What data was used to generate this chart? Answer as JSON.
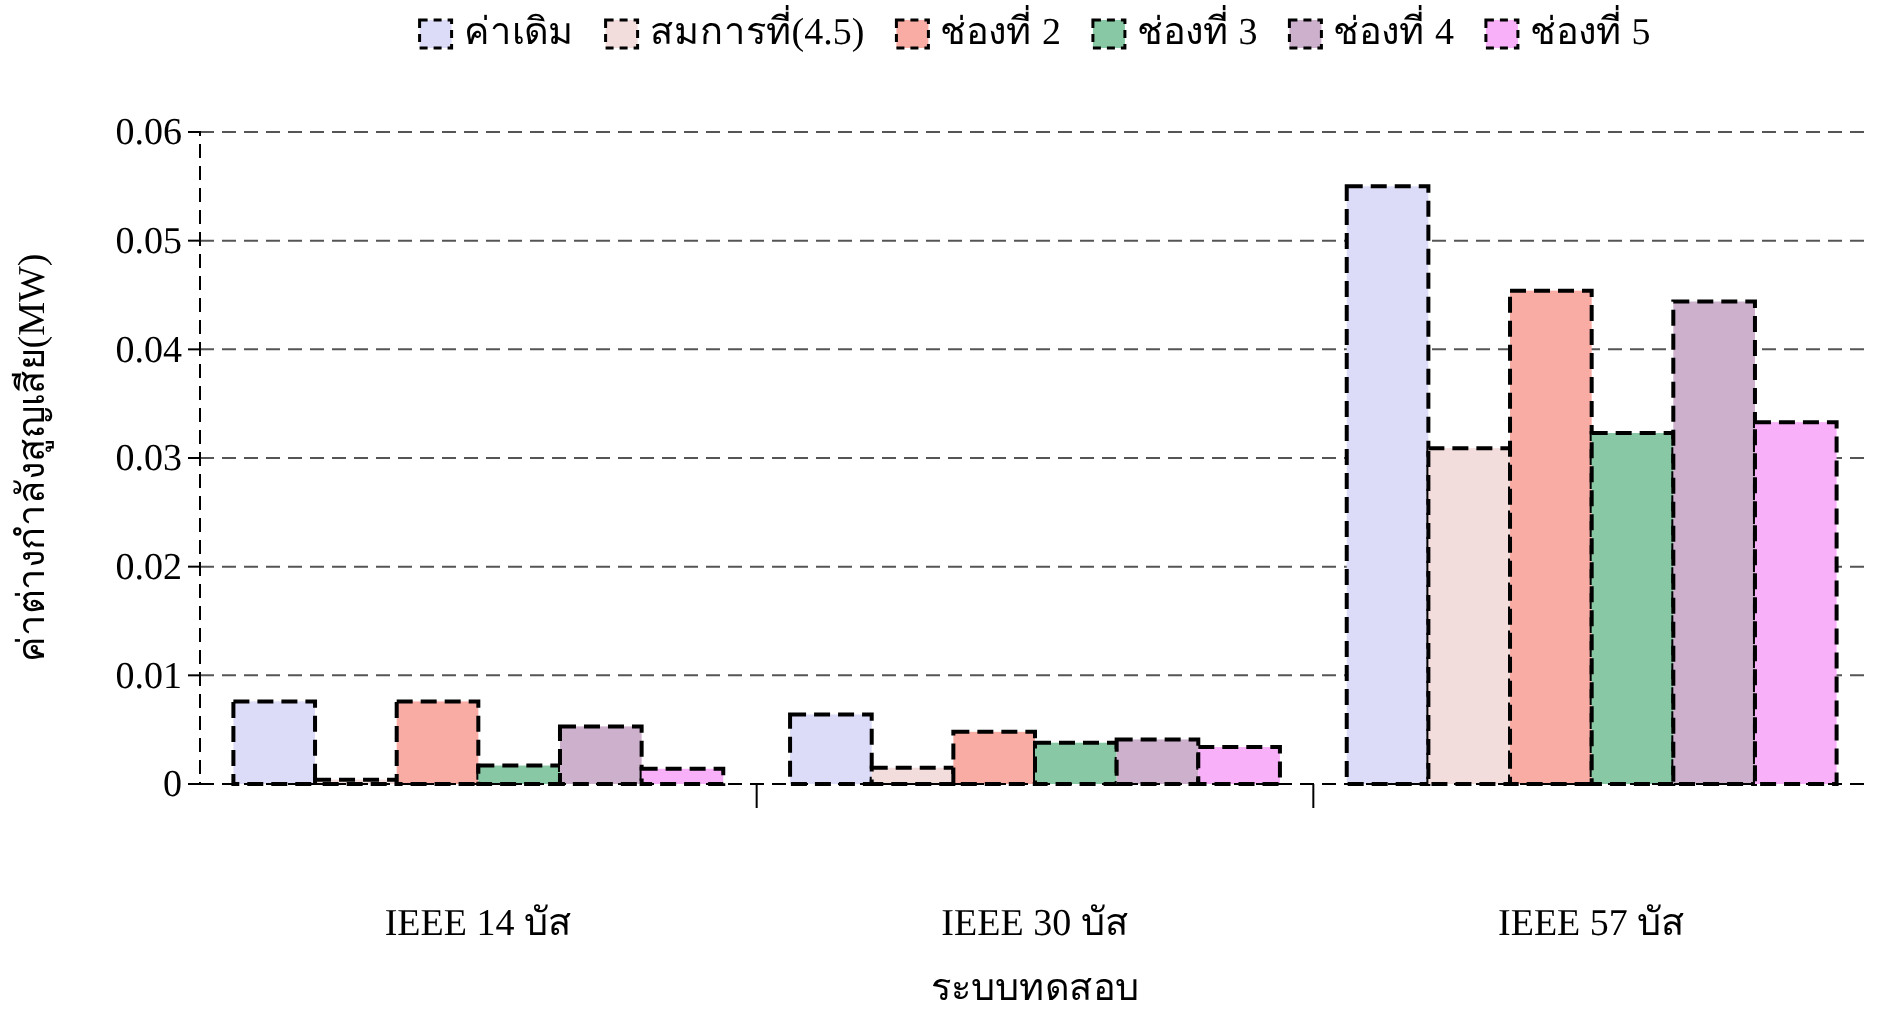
{
  "chart_data": {
    "type": "bar",
    "xlabel": "ระบบทดสอบ",
    "ylabel": "ค่าต่างกำลังสูญเสีย(MW)",
    "categories": [
      "IEEE 14 บัส",
      "IEEE 30 บัส",
      "IEEE 57 บัส"
    ],
    "series": [
      {
        "name": "ค่าเดิม",
        "color": "#dcdcf8",
        "values": [
          0.0076,
          0.0064,
          0.055
        ]
      },
      {
        "name": "สมการที่(4.5)",
        "color": "#f2dcdc",
        "values": [
          0.0004,
          0.0015,
          0.0309
        ]
      },
      {
        "name": "ช่องที่ 2",
        "color": "#f8aca4",
        "values": [
          0.0076,
          0.0048,
          0.0454
        ]
      },
      {
        "name": "ช่องที่ 3",
        "color": "#88c8a4",
        "values": [
          0.0017,
          0.0038,
          0.0323
        ]
      },
      {
        "name": "ช่องที่ 4",
        "color": "#ccb0cc",
        "values": [
          0.0053,
          0.0041,
          0.0444
        ]
      },
      {
        "name": "ช่องที่ 5",
        "color": "#f8b0f8",
        "values": [
          0.0014,
          0.0034,
          0.0333
        ]
      }
    ],
    "ylim": [
      0,
      0.06
    ],
    "yticks": [
      0,
      0.01,
      0.02,
      0.03,
      0.04,
      0.05,
      0.06
    ],
    "grid": "y",
    "legend": "top"
  }
}
